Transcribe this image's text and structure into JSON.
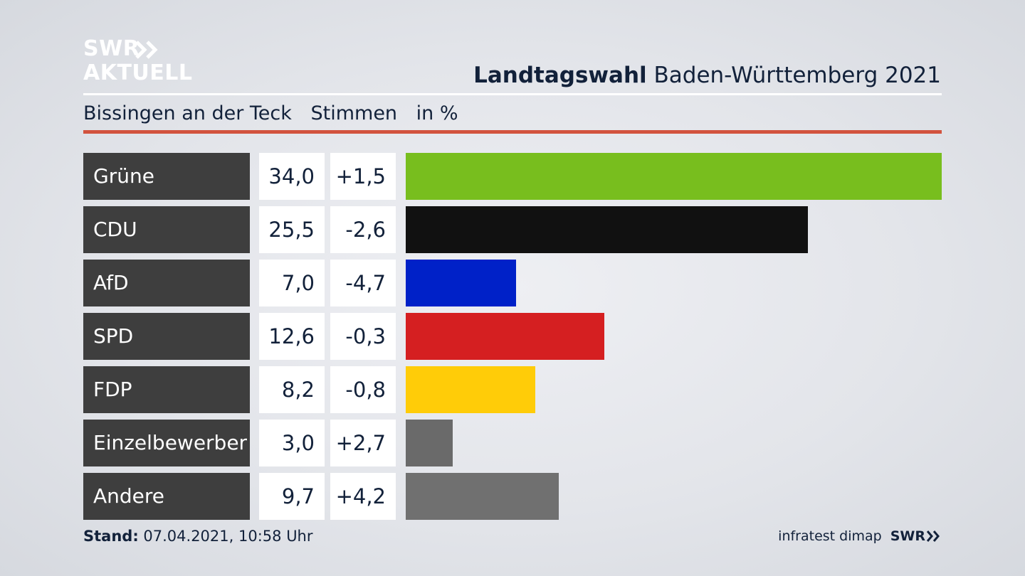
{
  "logo": {
    "line1": "SWR",
    "line2": "AKTUELL"
  },
  "header": {
    "title_bold": "Landtagswahl",
    "title_rest": "Baden-Württemberg 2021"
  },
  "subheader": {
    "place": "Bissingen an der Teck",
    "metric": "Stimmen",
    "unit": "in %"
  },
  "colors": {
    "accent_red": "#d2533e",
    "label_bg": "#3e3e3e"
  },
  "chart_data": {
    "type": "bar",
    "orientation": "horizontal",
    "categories": [
      "Grüne",
      "CDU",
      "AfD",
      "SPD",
      "FDP",
      "Einzelbewerber",
      "Andere"
    ],
    "values": [
      34.0,
      25.5,
      7.0,
      12.6,
      8.2,
      3.0,
      9.7
    ],
    "value_labels": [
      "34,0",
      "25,5",
      "7,0",
      "12,6",
      "8,2",
      "3,0",
      "9,7"
    ],
    "diff_labels": [
      "+1,5",
      "-2,6",
      "-4,7",
      "-0,3",
      "-0,8",
      "+2,7",
      "+4,2"
    ],
    "colors": [
      "#78be1e",
      "#111111",
      "#0021c8",
      "#d51f21",
      "#ffcc08",
      "#6a6a6a",
      "#707070"
    ],
    "xlim": [
      0,
      34.0
    ],
    "grid": false
  },
  "footer": {
    "stand_label": "Stand:",
    "stand_value": "07.04.2021, 10:58 Uhr",
    "source": "infratest dimap",
    "broadcaster": "SWR"
  }
}
